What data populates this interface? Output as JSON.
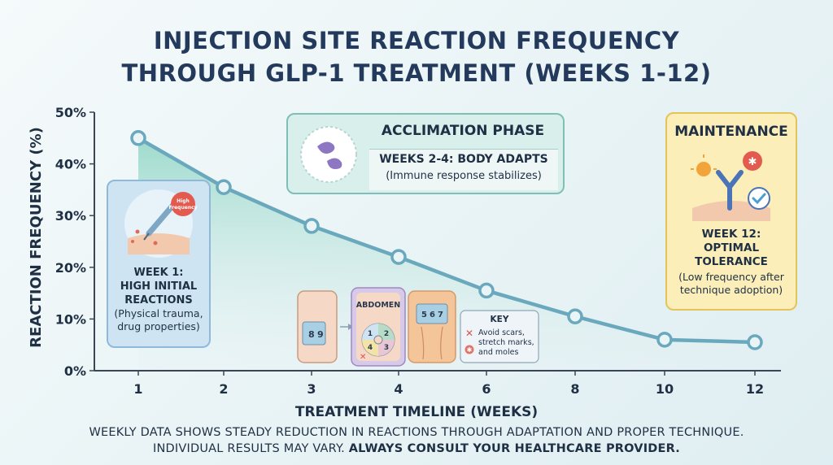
{
  "title_lines": [
    "INJECTION SITE REACTION FREQUENCY",
    "THROUGH GLP-1 TREATMENT (WEEKS 1-12)"
  ],
  "chart_data": {
    "type": "area",
    "title": "INJECTION SITE REACTION FREQUENCY THROUGH GLP-1 TREATMENT (WEEKS 1-12)",
    "xlabel": "TREATMENT TIMELINE (WEEKS)",
    "ylabel": "REACTION FREQUENCY (%)",
    "ylim": [
      0,
      50
    ],
    "yticks": [
      "0%",
      "10%",
      "20%",
      "30%",
      "40%",
      "50%"
    ],
    "categories": [
      "1",
      "2",
      "3",
      "4",
      "6",
      "8",
      "10",
      "12"
    ],
    "values": [
      45,
      35.5,
      28,
      22,
      15.5,
      10.5,
      6,
      5.5
    ],
    "grid": false,
    "colors": {
      "line": "#6aa9bd",
      "marker_fill": "#e9f4f7",
      "area_top": "#8fd6c4",
      "area_bottom": "#e8f2f5",
      "axis": "#3a4658"
    }
  },
  "callouts": {
    "week1": {
      "badge": [
        "High",
        "Frequency"
      ],
      "heading": [
        "WEEK 1:",
        "HIGH INITIAL",
        "REACTIONS"
      ],
      "detail": [
        "(Physical trauma,",
        "drug properties)"
      ]
    },
    "acclimation": {
      "heading": "ACCLIMATION PHASE",
      "subheading": "WEEKS 2-4: BODY ADAPTS",
      "detail": "(Immune response stabilizes)"
    },
    "maintenance": {
      "heading": "MAINTENANCE",
      "subheading": [
        "WEEK 12:",
        "OPTIMAL TOLERANCE"
      ],
      "detail": [
        "(Low frequency after",
        "technique adoption)"
      ]
    }
  },
  "sites": {
    "abdomen_label": "ABDOMEN",
    "arm_numbers": [
      "8",
      "9"
    ],
    "abdomen_numbers": [
      "1",
      "2",
      "3",
      "4"
    ],
    "thigh_numbers": [
      "5",
      "6",
      "7"
    ],
    "key_title": "KEY",
    "key_lines": [
      "Avoid scars,",
      "stretch marks,",
      "and moles"
    ]
  },
  "footer": {
    "line1": "WEEKLY DATA SHOWS STEADY REDUCTION IN REACTIONS THROUGH ADAPTATION AND PROPER TECHNIQUE.",
    "line2_normal": "INDIVIDUAL RESULTS MAY VARY. ",
    "line2_bold": "ALWAYS CONSULT YOUR HEALTHCARE PROVIDER."
  }
}
